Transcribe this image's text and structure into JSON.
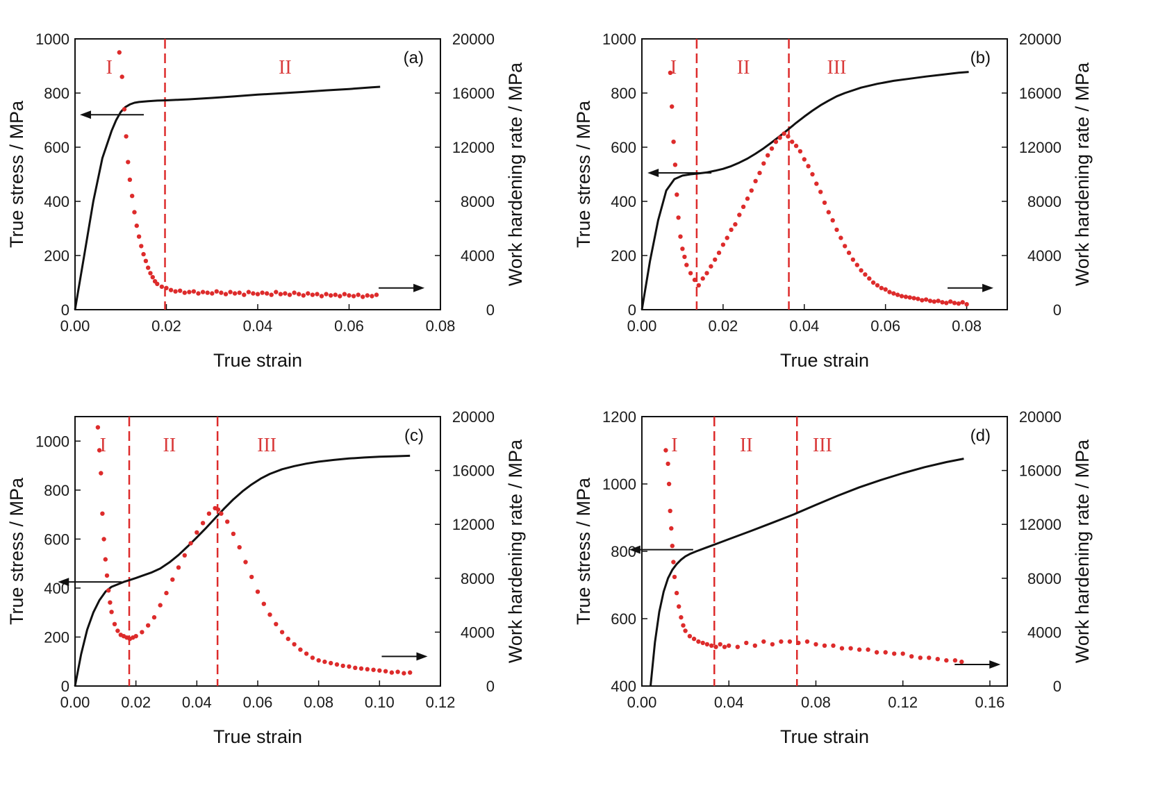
{
  "colors": {
    "stress": "#111111",
    "hardening": "#dd2b2b",
    "divider": "#dd2b2b",
    "axis": "#111111"
  },
  "chart_data": [
    {
      "panel": "(a)",
      "type": "line",
      "xlabel": "True strain",
      "ylabel": "True stress / MPa",
      "y2label": "Work hardening rate / MPa",
      "xlim": [
        0,
        0.08
      ],
      "ylim": [
        0,
        1000
      ],
      "y2lim": [
        0,
        20000
      ],
      "xticks": [
        "0.00",
        "0.02",
        "0.04",
        "0.06",
        "0.08"
      ],
      "yticks": [
        "0",
        "200",
        "400",
        "600",
        "800",
        "1000"
      ],
      "y2ticks": [
        "0",
        "4000",
        "8000",
        "12000",
        "16000",
        "20000"
      ],
      "regions": [
        "I",
        "II"
      ],
      "region_x": [
        0.0075,
        0.046
      ],
      "dividers": [
        0.0197
      ],
      "series": [
        {
          "axis": "left",
          "style": "line",
          "x": [
            0,
            0.002,
            0.004,
            0.006,
            0.008,
            0.009,
            0.01,
            0.011,
            0.012,
            0.013,
            0.014,
            0.016,
            0.018,
            0.02,
            0.025,
            0.03,
            0.035,
            0.04,
            0.045,
            0.05,
            0.055,
            0.06,
            0.065,
            0.0668
          ],
          "y": [
            0,
            200,
            400,
            560,
            660,
            700,
            730,
            748,
            758,
            764,
            767,
            770,
            772,
            773,
            777,
            782,
            788,
            794,
            799,
            804,
            810,
            815,
            821,
            823
          ]
        },
        {
          "axis": "right",
          "style": "scatter",
          "x": [
            0.0097,
            0.0103,
            0.0108,
            0.0112,
            0.0116,
            0.012,
            0.0125,
            0.013,
            0.0135,
            0.014,
            0.0145,
            0.015,
            0.0155,
            0.016,
            0.0165,
            0.017,
            0.0175,
            0.018,
            0.019,
            0.02,
            0.021,
            0.022,
            0.023,
            0.024,
            0.025,
            0.026,
            0.027,
            0.028,
            0.029,
            0.03,
            0.031,
            0.032,
            0.033,
            0.034,
            0.035,
            0.036,
            0.037,
            0.038,
            0.039,
            0.04,
            0.041,
            0.042,
            0.043,
            0.044,
            0.045,
            0.046,
            0.047,
            0.048,
            0.049,
            0.05,
            0.051,
            0.052,
            0.053,
            0.054,
            0.055,
            0.056,
            0.057,
            0.058,
            0.059,
            0.06,
            0.061,
            0.062,
            0.063,
            0.064,
            0.065,
            0.066
          ],
          "y": [
            19000,
            17200,
            14800,
            12800,
            10900,
            9600,
            8400,
            7200,
            6200,
            5400,
            4700,
            4100,
            3600,
            3100,
            2700,
            2400,
            2100,
            1900,
            1700,
            1600,
            1450,
            1350,
            1400,
            1250,
            1300,
            1350,
            1200,
            1300,
            1250,
            1200,
            1350,
            1250,
            1150,
            1300,
            1200,
            1250,
            1100,
            1300,
            1200,
            1150,
            1250,
            1200,
            1100,
            1300,
            1150,
            1200,
            1100,
            1250,
            1150,
            1050,
            1200,
            1100,
            1150,
            1000,
            1150,
            1050,
            1100,
            1000,
            1150,
            1050,
            1000,
            1100,
            950,
            1050,
            1000,
            1100
          ]
        }
      ],
      "arrows": {
        "left_at": [
          0.0105,
          720
        ],
        "right_at": [
          0.068,
          1600
        ]
      }
    },
    {
      "panel": "(b)",
      "type": "line",
      "xlabel": "True strain",
      "ylabel": "True stress / MPa",
      "y2label": "Work hardening rate / MPa",
      "xlim": [
        0,
        0.09
      ],
      "ylim": [
        0,
        1000
      ],
      "y2lim": [
        0,
        20000
      ],
      "xticks": [
        "0.00",
        "0.02",
        "0.04",
        "0.06",
        "0.08"
      ],
      "yticks": [
        "0",
        "200",
        "400",
        "600",
        "800",
        "1000"
      ],
      "y2ticks": [
        "0",
        "4000",
        "8000",
        "12000",
        "16000",
        "20000"
      ],
      "regions": [
        "I",
        "II",
        "III"
      ],
      "region_x": [
        0.0078,
        0.025,
        0.048
      ],
      "dividers": [
        0.0135,
        0.0362
      ],
      "series": [
        {
          "axis": "left",
          "style": "line",
          "x": [
            0,
            0.002,
            0.004,
            0.006,
            0.008,
            0.01,
            0.012,
            0.014,
            0.016,
            0.018,
            0.02,
            0.022,
            0.024,
            0.026,
            0.028,
            0.03,
            0.032,
            0.034,
            0.036,
            0.038,
            0.04,
            0.042,
            0.044,
            0.046,
            0.048,
            0.05,
            0.054,
            0.058,
            0.062,
            0.066,
            0.07,
            0.074,
            0.078,
            0.0805
          ],
          "y": [
            0,
            180,
            330,
            440,
            482,
            495,
            500,
            503,
            507,
            513,
            520,
            530,
            543,
            558,
            576,
            596,
            618,
            641,
            665,
            690,
            713,
            735,
            755,
            772,
            788,
            800,
            820,
            834,
            845,
            853,
            861,
            868,
            875,
            878
          ]
        },
        {
          "axis": "right",
          "style": "scatter",
          "x": [
            0.007,
            0.0074,
            0.0078,
            0.0082,
            0.0086,
            0.009,
            0.0095,
            0.01,
            0.0105,
            0.011,
            0.012,
            0.013,
            0.014,
            0.015,
            0.016,
            0.017,
            0.018,
            0.019,
            0.02,
            0.021,
            0.022,
            0.023,
            0.024,
            0.025,
            0.026,
            0.027,
            0.028,
            0.029,
            0.03,
            0.031,
            0.032,
            0.033,
            0.034,
            0.035,
            0.036,
            0.037,
            0.038,
            0.039,
            0.04,
            0.041,
            0.042,
            0.043,
            0.044,
            0.045,
            0.046,
            0.047,
            0.048,
            0.049,
            0.05,
            0.051,
            0.052,
            0.053,
            0.054,
            0.055,
            0.056,
            0.057,
            0.058,
            0.059,
            0.06,
            0.061,
            0.062,
            0.063,
            0.064,
            0.065,
            0.066,
            0.067,
            0.068,
            0.069,
            0.07,
            0.071,
            0.072,
            0.073,
            0.074,
            0.075,
            0.076,
            0.077,
            0.078,
            0.079,
            0.08
          ],
          "y": [
            17500,
            15000,
            12400,
            10700,
            8500,
            6800,
            5400,
            4500,
            3900,
            3300,
            2700,
            2200,
            1800,
            2300,
            2700,
            3200,
            3700,
            4200,
            4800,
            5300,
            5900,
            6300,
            7000,
            7600,
            8200,
            8800,
            9500,
            10100,
            10800,
            11400,
            11900,
            12400,
            12700,
            13000,
            12800,
            12400,
            12100,
            11700,
            11100,
            10600,
            10000,
            9300,
            8700,
            7900,
            7200,
            6600,
            5900,
            5300,
            4700,
            4200,
            3700,
            3300,
            2900,
            2600,
            2300,
            2000,
            1800,
            1600,
            1500,
            1300,
            1200,
            1100,
            1000,
            950,
            900,
            850,
            800,
            700,
            750,
            650,
            600,
            650,
            550,
            500,
            600,
            500,
            450,
            550,
            400
          ]
        }
      ],
      "arrows": {
        "left_at": [
          0.012,
          505
        ],
        "right_at": [
          0.077,
          1600
        ]
      }
    },
    {
      "panel": "(c)",
      "type": "line",
      "xlabel": "True strain",
      "ylabel": "True stress / MPa",
      "y2label": "Work hardening rate / MPa",
      "xlim": [
        0,
        0.12
      ],
      "ylim": [
        0,
        1100
      ],
      "y2lim": [
        0,
        20000
      ],
      "xticks": [
        "0.00",
        "0.02",
        "0.04",
        "0.06",
        "0.08",
        "0.10",
        "0.12"
      ],
      "yticks": [
        "0",
        "200",
        "400",
        "600",
        "800",
        "1000"
      ],
      "y2ticks": [
        "0",
        "4000",
        "8000",
        "12000",
        "16000",
        "20000"
      ],
      "regions": [
        "I",
        "II",
        "III"
      ],
      "region_x": [
        0.0092,
        0.031,
        0.063
      ],
      "dividers": [
        0.0178,
        0.0468
      ],
      "series": [
        {
          "axis": "left",
          "style": "line",
          "x": [
            0,
            0.002,
            0.004,
            0.006,
            0.008,
            0.01,
            0.012,
            0.014,
            0.016,
            0.018,
            0.02,
            0.022,
            0.025,
            0.028,
            0.031,
            0.034,
            0.037,
            0.04,
            0.043,
            0.046,
            0.049,
            0.052,
            0.055,
            0.058,
            0.061,
            0.064,
            0.068,
            0.072,
            0.076,
            0.08,
            0.085,
            0.09,
            0.095,
            0.1,
            0.105,
            0.11
          ],
          "y": [
            0,
            130,
            230,
            300,
            350,
            385,
            405,
            415,
            425,
            433,
            441,
            450,
            463,
            480,
            505,
            535,
            570,
            607,
            645,
            685,
            725,
            762,
            795,
            823,
            847,
            866,
            885,
            898,
            908,
            916,
            923,
            929,
            933,
            936,
            938,
            940
          ]
        },
        {
          "axis": "right",
          "style": "scatter",
          "x": [
            0.0075,
            0.008,
            0.0085,
            0.009,
            0.0095,
            0.01,
            0.0105,
            0.011,
            0.0115,
            0.012,
            0.013,
            0.014,
            0.015,
            0.016,
            0.017,
            0.018,
            0.019,
            0.02,
            0.022,
            0.024,
            0.026,
            0.028,
            0.03,
            0.032,
            0.034,
            0.036,
            0.038,
            0.04,
            0.042,
            0.044,
            0.046,
            0.047,
            0.048,
            0.05,
            0.052,
            0.054,
            0.056,
            0.058,
            0.06,
            0.062,
            0.064,
            0.066,
            0.068,
            0.07,
            0.072,
            0.074,
            0.076,
            0.078,
            0.08,
            0.082,
            0.084,
            0.086,
            0.088,
            0.09,
            0.092,
            0.094,
            0.096,
            0.098,
            0.1,
            0.102,
            0.104,
            0.106,
            0.108,
            0.11
          ],
          "y": [
            19200,
            17500,
            15800,
            12800,
            10900,
            9400,
            8200,
            7100,
            6200,
            5500,
            4600,
            4100,
            3800,
            3700,
            3600,
            3500,
            3600,
            3700,
            4000,
            4500,
            5100,
            6000,
            6900,
            7900,
            8800,
            9700,
            10600,
            11400,
            12100,
            12800,
            13200,
            13100,
            12800,
            12200,
            11300,
            10300,
            9200,
            8100,
            7000,
            6100,
            5300,
            4600,
            4000,
            3500,
            3100,
            2700,
            2400,
            2100,
            1900,
            1800,
            1700,
            1600,
            1500,
            1450,
            1350,
            1300,
            1250,
            1200,
            1150,
            1100,
            1000,
            1050,
            950,
            1000
          ]
        }
      ],
      "arrows": {
        "left_at": [
          0.0085,
          425
        ],
        "right_at": [
          0.103,
          2200
        ]
      }
    },
    {
      "panel": "(d)",
      "type": "line",
      "xlabel": "True strain",
      "ylabel": "True stress / MPa",
      "y2label": "Work hardening rate / MPa",
      "xlim": [
        0,
        0.168
      ],
      "ylim": [
        400,
        1200
      ],
      "y2lim": [
        0,
        20000
      ],
      "xticks": [
        "0.00",
        "0.04",
        "0.08",
        "0.12",
        "0.16"
      ],
      "yticks": [
        "400",
        "600",
        "800",
        "1000",
        "1200"
      ],
      "y2ticks": [
        "0",
        "4000",
        "8000",
        "12000",
        "16000",
        "20000"
      ],
      "regions": [
        "I",
        "II",
        "III"
      ],
      "region_x": [
        0.015,
        0.048,
        0.083
      ],
      "dividers": [
        0.0333,
        0.0713
      ],
      "series": [
        {
          "axis": "left",
          "style": "line",
          "x": [
            0.004,
            0.006,
            0.008,
            0.01,
            0.012,
            0.014,
            0.016,
            0.018,
            0.02,
            0.022,
            0.025,
            0.03,
            0.035,
            0.04,
            0.05,
            0.06,
            0.07,
            0.08,
            0.09,
            0.1,
            0.11,
            0.12,
            0.13,
            0.14,
            0.148
          ],
          "y": [
            400,
            530,
            620,
            680,
            720,
            745,
            762,
            775,
            785,
            792,
            800,
            812,
            824,
            836,
            860,
            885,
            910,
            938,
            965,
            990,
            1012,
            1032,
            1050,
            1065,
            1075
          ]
        },
        {
          "axis": "right",
          "style": "scatter",
          "x": [
            0.011,
            0.012,
            0.0125,
            0.013,
            0.0135,
            0.014,
            0.0145,
            0.015,
            0.016,
            0.017,
            0.018,
            0.019,
            0.02,
            0.022,
            0.024,
            0.026,
            0.028,
            0.03,
            0.032,
            0.034,
            0.036,
            0.038,
            0.04,
            0.044,
            0.048,
            0.052,
            0.056,
            0.06,
            0.064,
            0.068,
            0.072,
            0.076,
            0.08,
            0.084,
            0.088,
            0.092,
            0.096,
            0.1,
            0.104,
            0.108,
            0.112,
            0.116,
            0.12,
            0.124,
            0.128,
            0.132,
            0.136,
            0.14,
            0.144,
            0.147
          ],
          "y": [
            17500,
            16500,
            15000,
            13000,
            11700,
            10400,
            9200,
            8100,
            6900,
            5900,
            5100,
            4500,
            4100,
            3700,
            3500,
            3300,
            3200,
            3100,
            3000,
            2900,
            3100,
            2900,
            3000,
            2900,
            3200,
            3000,
            3300,
            3100,
            3300,
            3300,
            3200,
            3300,
            3100,
            3000,
            3000,
            2800,
            2800,
            2700,
            2700,
            2500,
            2500,
            2400,
            2400,
            2200,
            2100,
            2100,
            2000,
            1900,
            1900,
            1800
          ]
        }
      ],
      "arrows": {
        "left_at": [
          0.014,
          805
        ],
        "right_at": [
          0.147,
          1600
        ]
      }
    }
  ]
}
